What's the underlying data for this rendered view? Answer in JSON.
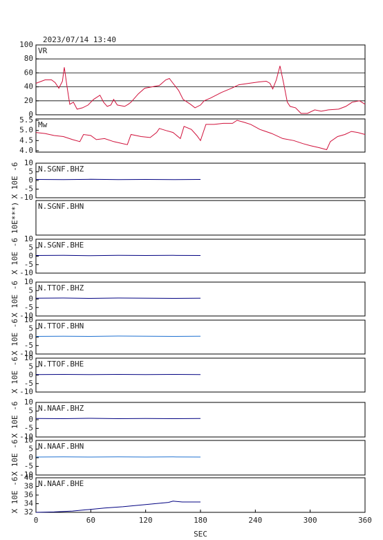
{
  "timestamp": "2023/07/14  13:40",
  "chart_data": [
    {
      "type": "line",
      "title": "VR",
      "color": "#d0103a",
      "grid": true,
      "xlim": [
        0,
        360
      ],
      "ylim": [
        0,
        100
      ],
      "yticks": [
        0,
        20,
        40,
        60,
        80,
        100
      ],
      "x": [
        0,
        10,
        17,
        21,
        25,
        29,
        31,
        34,
        37,
        41,
        45,
        51,
        57,
        63,
        70,
        74,
        78,
        82,
        85,
        89,
        97,
        101,
        104,
        112,
        119,
        127,
        135,
        142,
        146,
        150,
        156,
        161,
        169,
        174,
        180,
        184,
        191,
        203,
        214,
        222,
        233,
        244,
        252,
        256,
        259,
        263,
        267,
        271,
        275,
        278,
        284,
        290,
        297,
        305,
        312,
        320,
        331,
        339,
        346,
        354,
        360
      ],
      "values": [
        45,
        50,
        50,
        46,
        38,
        48,
        68,
        40,
        15,
        18,
        8,
        10,
        14,
        22,
        28,
        18,
        12,
        14,
        22,
        14,
        12,
        15,
        18,
        30,
        38,
        40,
        42,
        50,
        52,
        45,
        35,
        22,
        15,
        10,
        14,
        20,
        24,
        32,
        38,
        43,
        45,
        47,
        48,
        45,
        37,
        50,
        70,
        45,
        18,
        12,
        10,
        2,
        2,
        7,
        5,
        7,
        8,
        12,
        18,
        20,
        15
      ]
    },
    {
      "type": "line",
      "title": "Mw",
      "color": "#d0103a",
      "xlim": [
        0,
        360
      ],
      "ylim": [
        3.93,
        5.57
      ],
      "yticks": [
        {
          "value": 4,
          "label": "4.0"
        },
        {
          "value": 4.5,
          "label": "4.5"
        },
        {
          "value": 5,
          "label": "5.0"
        },
        {
          "value": 5.5,
          "label": "5.5"
        }
      ],
      "x": [
        0,
        10,
        20,
        30,
        40,
        48,
        52,
        60,
        66,
        75,
        85,
        95,
        100,
        104,
        115,
        125,
        132,
        135,
        142,
        150,
        158,
        162,
        170,
        176,
        180,
        186,
        195,
        205,
        215,
        220,
        228,
        235,
        245,
        258,
        270,
        282,
        292,
        300,
        310,
        318,
        322,
        330,
        338,
        345,
        352,
        360
      ],
      "values": [
        4.9,
        4.85,
        4.75,
        4.7,
        4.55,
        4.45,
        4.8,
        4.75,
        4.55,
        4.6,
        4.45,
        4.35,
        4.3,
        4.8,
        4.7,
        4.65,
        4.9,
        5.1,
        5.0,
        4.9,
        4.6,
        5.2,
        5.05,
        4.75,
        4.5,
        5.3,
        5.3,
        5.35,
        5.35,
        5.5,
        5.4,
        5.3,
        5.05,
        4.85,
        4.6,
        4.5,
        4.35,
        4.25,
        4.15,
        4.05,
        4.45,
        4.7,
        4.8,
        4.95,
        4.9,
        4.8
      ]
    },
    {
      "type": "line",
      "title": "N.SGNF.BHZ",
      "ylabel": "X 10E -6",
      "color": "#000080",
      "xlim": [
        0,
        360
      ],
      "ylim": [
        -10,
        10
      ],
      "yticks": [
        -10,
        -5,
        0,
        5,
        10
      ],
      "x": [
        0,
        30,
        60,
        90,
        120,
        150,
        180
      ],
      "values": [
        0.6,
        0.5,
        0.7,
        0.5,
        0.6,
        0.5,
        0.6
      ]
    },
    {
      "type": "line",
      "title": "N.SGNF.BHN",
      "ylabel": "10E***)",
      "xlim": [
        0,
        360
      ]
    },
    {
      "type": "line",
      "title": "N.SGNF.BHE",
      "ylabel": "X 10E -6",
      "color": "#000080",
      "xlim": [
        0,
        360
      ],
      "ylim": [
        -10,
        10
      ],
      "yticks": [
        -10,
        -5,
        0,
        5,
        10
      ],
      "x": [
        0,
        30,
        60,
        90,
        120,
        150,
        180
      ],
      "values": [
        0.4,
        0.5,
        0.3,
        0.5,
        0.4,
        0.5,
        0.4
      ]
    },
    {
      "type": "line",
      "title": "N.TTOF.BHZ",
      "ylabel": "X 10E -6",
      "color": "#000080",
      "xlim": [
        0,
        360
      ],
      "ylim": [
        -10,
        10
      ],
      "yticks": [
        -10,
        -5,
        0,
        5,
        10
      ],
      "x": [
        0,
        30,
        60,
        90,
        120,
        150,
        180
      ],
      "values": [
        0.5,
        0.6,
        0.4,
        0.6,
        0.5,
        0.4,
        0.5
      ]
    },
    {
      "type": "line",
      "title": "N.TTOF.BHN",
      "ylabel": "X 10E -6",
      "color": "#1e70d0",
      "xlim": [
        0,
        360
      ],
      "ylim": [
        -10,
        10
      ],
      "yticks": [
        -10,
        -5,
        0,
        5,
        10
      ],
      "x": [
        0,
        30,
        60,
        90,
        120,
        150,
        180
      ],
      "values": [
        0.4,
        0.5,
        0.4,
        0.6,
        0.5,
        0.4,
        0.5
      ]
    },
    {
      "type": "line",
      "title": "N.TTOF.BHE",
      "ylabel": "X 10E -6",
      "color": "#000080",
      "xlim": [
        0,
        360
      ],
      "ylim": [
        -10,
        10
      ],
      "yticks": [
        -10,
        -5,
        0,
        5,
        10
      ],
      "x": [
        0,
        30,
        60,
        90,
        120,
        150,
        180
      ],
      "values": [
        0.3,
        0.4,
        0.3,
        0.4,
        0.3,
        0.4,
        0.3
      ]
    },
    {
      "type": "line",
      "title": "N.NAAF.BHZ",
      "ylabel": "X 10E -6",
      "color": "#000080",
      "xlim": [
        0,
        360
      ],
      "ylim": [
        -10,
        10
      ],
      "yticks": [
        -10,
        -5,
        0,
        5,
        10
      ],
      "x": [
        0,
        30,
        60,
        90,
        120,
        150,
        180
      ],
      "values": [
        0.7,
        0.6,
        0.8,
        0.6,
        0.7,
        0.6,
        0.7
      ]
    },
    {
      "type": "line",
      "title": "N.NAAF.BHN",
      "ylabel": "X 10E -6",
      "color": "#1e70d0",
      "xlim": [
        0,
        360
      ],
      "ylim": [
        -10,
        10
      ],
      "yticks": [
        -10,
        -5,
        0,
        5,
        10
      ],
      "x": [
        0,
        30,
        60,
        90,
        120,
        150,
        180
      ],
      "values": [
        0.4,
        0.5,
        0.4,
        0.5,
        0.4,
        0.5,
        0.4
      ]
    },
    {
      "type": "line",
      "title": "N.NAAF.BHE",
      "ylabel": "X 10E -6",
      "color": "#000080",
      "xlim": [
        0,
        360
      ],
      "ylim": [
        32,
        40
      ],
      "yticks": [
        32,
        34,
        36,
        38,
        40
      ],
      "xticks": [
        0,
        60,
        120,
        180,
        240,
        300,
        360
      ],
      "xlabel": "SEC",
      "x": [
        0,
        20,
        40,
        55,
        75,
        95,
        110,
        130,
        145,
        150,
        160,
        170,
        180
      ],
      "values": [
        32,
        32.1,
        32.3,
        32.6,
        33,
        33.3,
        33.6,
        34,
        34.3,
        34.6,
        34.4,
        34.4,
        34.4
      ]
    }
  ]
}
